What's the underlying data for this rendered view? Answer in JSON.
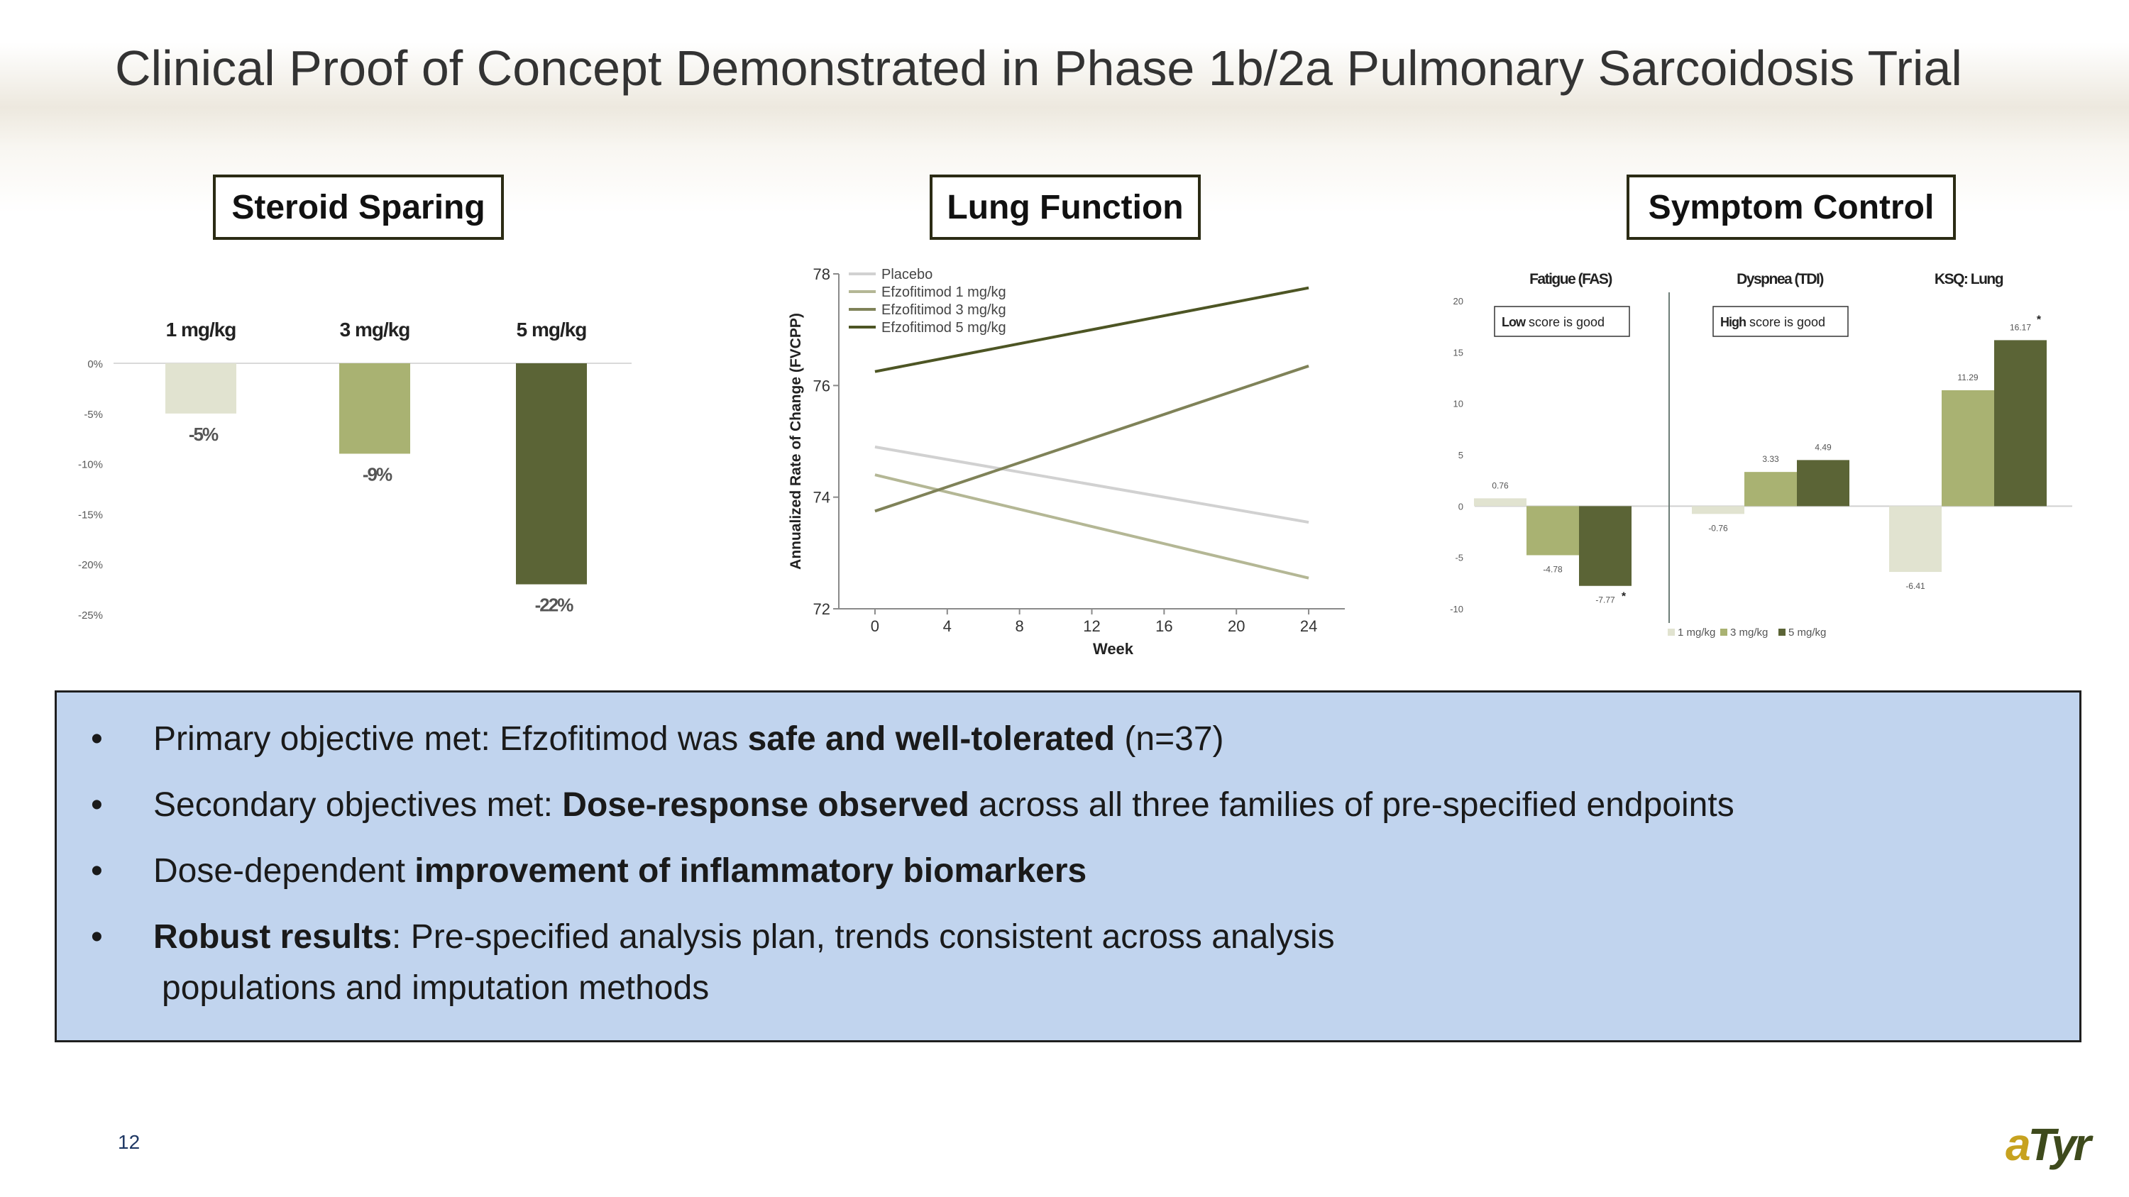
{
  "title": "Clinical Proof of Concept Demonstrated in Phase 1b/2a Pulmonary Sarcoidosis Trial",
  "panels": {
    "steroid": "Steroid Sparing",
    "lung": "Lung Function",
    "symptom": "Symptom Control"
  },
  "colors": {
    "light": "#e1e3d0",
    "mid": "#a9b272",
    "dark": "#5b6436",
    "placebo": "#d1d1d1",
    "line1": "#b4b795",
    "line3": "#7f8258",
    "line5": "#4d5524"
  },
  "chart_data": [
    {
      "type": "bar",
      "title": "Steroid Sparing",
      "categories": [
        "1 mg/kg",
        "3 mg/kg",
        "5 mg/kg"
      ],
      "values": [
        -5,
        -9,
        -22
      ],
      "value_labels": [
        "-5%",
        "-9%",
        "-22%"
      ],
      "ylim": [
        -25,
        0
      ],
      "yticks": [
        0,
        -5,
        -10,
        -15,
        -20,
        -25
      ],
      "ytick_labels": [
        "0%",
        "-5%",
        "-10%",
        "-15%",
        "-20%",
        "-25%"
      ]
    },
    {
      "type": "line",
      "title": "Lung Function",
      "xlabel": "Week",
      "ylabel": "Annualized Rate of Change (FVCPP)",
      "x": [
        0,
        24
      ],
      "xticks": [
        0,
        4,
        8,
        12,
        16,
        20,
        24
      ],
      "yticks": [
        72,
        74,
        76,
        78
      ],
      "xlim": [
        -2,
        26
      ],
      "ylim": [
        72,
        78
      ],
      "legend_position": "top-left",
      "series": [
        {
          "name": "Placebo",
          "values": [
            74.9,
            73.55
          ]
        },
        {
          "name": "Efzofitimod 1 mg/kg",
          "values": [
            74.4,
            72.55
          ]
        },
        {
          "name": "Efzofitimod 3 mg/kg",
          "values": [
            73.75,
            76.35
          ]
        },
        {
          "name": "Efzofitimod 5 mg/kg",
          "values": [
            76.25,
            77.75
          ]
        }
      ]
    },
    {
      "type": "bar",
      "title": "Symptom Control",
      "groups": [
        "Fatigue (FAS)",
        "Dyspnea (TDI)",
        "KSQ: Lung"
      ],
      "notes": [
        {
          "bold": "Low",
          "text": " score is good"
        },
        {
          "bold": "High",
          "text": " score is good"
        }
      ],
      "series": [
        {
          "name": "1 mg/kg",
          "values": [
            0.76,
            -0.76,
            -6.41
          ],
          "labels": [
            "0.76",
            "-0.76",
            "-6.41"
          ]
        },
        {
          "name": "3 mg/kg",
          "values": [
            -4.78,
            3.33,
            11.29
          ],
          "labels": [
            "-4.78",
            "3.33",
            "11.29"
          ]
        },
        {
          "name": "5 mg/kg",
          "values": [
            -7.77,
            4.49,
            16.17
          ],
          "labels": [
            "-7.77",
            "4.49",
            "16.17"
          ]
        }
      ],
      "significance": [
        {
          "group": 0,
          "series": 2,
          "mark": "*"
        },
        {
          "group": 2,
          "series": 2,
          "mark": "*"
        }
      ],
      "ylim": [
        -10,
        20
      ],
      "yticks": [
        20,
        15,
        10,
        5,
        0,
        -5,
        -10
      ],
      "legend_position": "bottom"
    }
  ],
  "bullets": [
    {
      "parts": [
        {
          "t": "Primary objective met: Efzofitimod was "
        },
        {
          "t": "safe and well-tolerated",
          "b": true
        },
        {
          "t": " (n=37)"
        }
      ]
    },
    {
      "parts": [
        {
          "t": "Secondary objectives met: "
        },
        {
          "t": "Dose-response observed",
          "b": true
        },
        {
          "t": " across all three families of pre-specified endpoints"
        }
      ]
    },
    {
      "parts": [
        {
          "t": "Dose-dependent "
        },
        {
          "t": "improvement of inflammatory biomarkers",
          "b": true
        }
      ]
    },
    {
      "parts": [
        {
          "t": "Robust results",
          "b": true
        },
        {
          "t": ": Pre-specified analysis plan, trends consistent across analysis"
        }
      ],
      "cont": "populations and imputation methods"
    }
  ],
  "bullet_char": "•",
  "page_number": "12",
  "logo": {
    "a": "a",
    "rest": "Tyr"
  }
}
